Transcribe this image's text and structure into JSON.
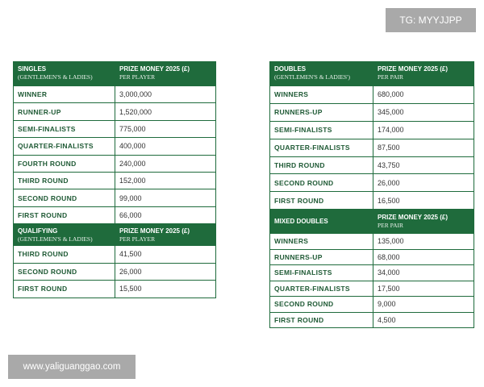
{
  "watermarks": {
    "top": "TG: MYYJJPP",
    "bottom": "www.yaliguanggao.com"
  },
  "colors": {
    "accent": "#1f6b3c"
  },
  "singles": {
    "title": "SINGLES",
    "subtitle": "(GENTLEMEN'S & LADIES)",
    "col": "PRIZE MONEY 2025 (£)",
    "col_sub": "PER PLAYER",
    "rows": [
      [
        "WINNER",
        "3,000,000"
      ],
      [
        "RUNNER-UP",
        "1,520,000"
      ],
      [
        "SEMI-FINALISTS",
        "775,000"
      ],
      [
        "QUARTER-FINALISTS",
        "400,000"
      ],
      [
        "FOURTH ROUND",
        "240,000"
      ],
      [
        "THIRD ROUND",
        "152,000"
      ],
      [
        "SECOND ROUND",
        "99,000"
      ],
      [
        "FIRST ROUND",
        "66,000"
      ]
    ]
  },
  "qualifying": {
    "title": "QUALIFYING",
    "subtitle": "(GENTLEMEN'S & LADIES)",
    "col": "PRIZE MONEY 2025 (£)",
    "col_sub": "PER PLAYER",
    "rows": [
      [
        "THIRD ROUND",
        "41,500"
      ],
      [
        "SECOND ROUND",
        "26,000"
      ],
      [
        "FIRST ROUND",
        "15,500"
      ]
    ]
  },
  "doubles": {
    "title": "DOUBLES",
    "subtitle": "(GENTLEMEN'S & LADIES')",
    "col": "PRIZE MONEY 2025 (£)",
    "col_sub": "PER PAIR",
    "rows": [
      [
        "WINNERS",
        "680,000"
      ],
      [
        "RUNNERS-UP",
        "345,000"
      ],
      [
        "SEMI-FINALISTS",
        "174,000"
      ],
      [
        "QUARTER-FINALISTS",
        "87,500"
      ],
      [
        "THIRD ROUND",
        "43,750"
      ],
      [
        "SECOND ROUND",
        "26,000"
      ],
      [
        "FIRST ROUND",
        "16,500"
      ]
    ]
  },
  "mixed": {
    "title": "MIXED DOUBLES",
    "col": "PRIZE MONEY 2025 (£)",
    "col_sub": "PER PAIR",
    "rows": [
      [
        "WINNERS",
        "135,000"
      ],
      [
        "RUNNERS-UP",
        "68,000"
      ],
      [
        "SEMI-FINALISTS",
        "34,000"
      ],
      [
        "QUARTER-FINALISTS",
        "17,500"
      ],
      [
        "SECOND ROUND",
        "9,000"
      ],
      [
        "FIRST ROUND",
        "4,500"
      ]
    ]
  }
}
